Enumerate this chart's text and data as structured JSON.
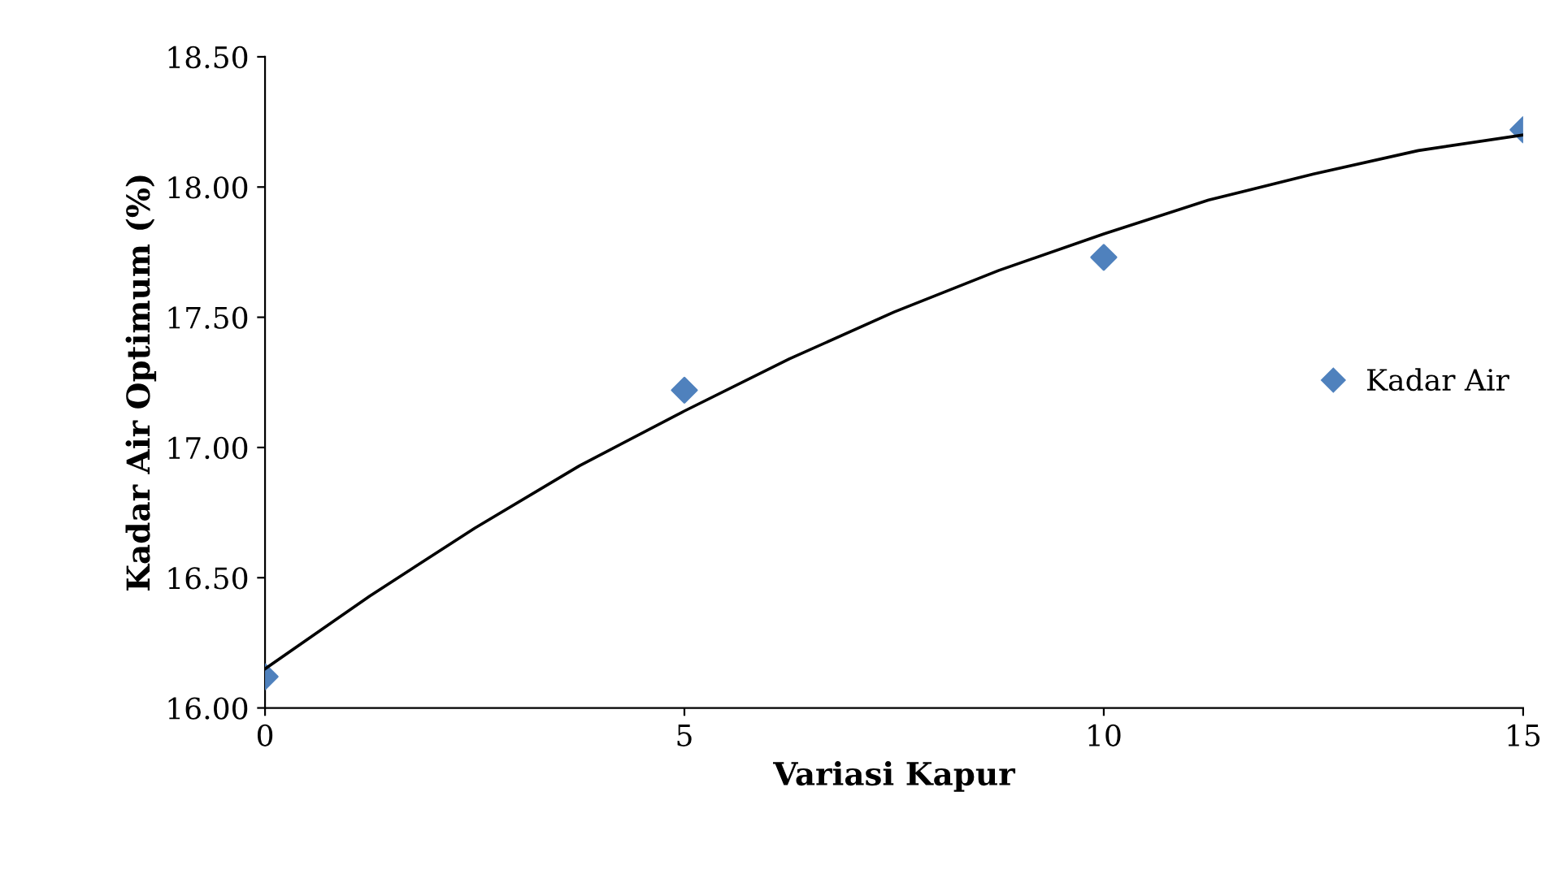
{
  "chart_data": {
    "type": "scatter",
    "xlabel": "Variasi Kapur",
    "ylabel": "Kadar Air Optimum (%)",
    "x": [
      0,
      5,
      10,
      15
    ],
    "series": [
      {
        "name": "Kadar Air",
        "color": "#4f81bd",
        "values": [
          16.12,
          17.22,
          17.73,
          18.22
        ],
        "marker": "diamond"
      },
      {
        "type": "line",
        "color": "#000000",
        "x": [
          0,
          1.25,
          2.5,
          3.75,
          5,
          6.25,
          7.5,
          8.75,
          10,
          11.25,
          12.5,
          13.75,
          15
        ],
        "values": [
          16.15,
          16.43,
          16.69,
          16.93,
          17.14,
          17.34,
          17.52,
          17.68,
          17.82,
          17.95,
          18.05,
          18.14,
          18.2
        ],
        "marker": "none"
      }
    ],
    "xlim": [
      0,
      15
    ],
    "xticks": [
      0,
      5,
      10,
      15
    ],
    "ylim": [
      16.0,
      18.5
    ],
    "yticks": [
      {
        "value": 16.0,
        "label": "16.00"
      },
      {
        "value": 16.5,
        "label": "16.50"
      },
      {
        "value": 17.0,
        "label": "17.00"
      },
      {
        "value": 17.5,
        "label": "17.50"
      },
      {
        "value": 18.0,
        "label": "18.00"
      },
      {
        "value": 18.5,
        "label": "18.50"
      }
    ],
    "grid": false,
    "legend": "right"
  }
}
